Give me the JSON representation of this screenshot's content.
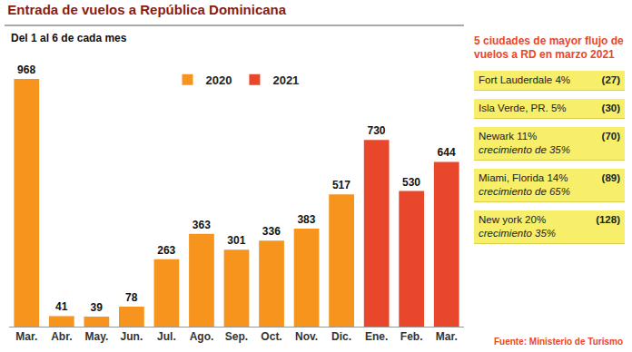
{
  "chart_data": {
    "type": "bar",
    "title": "Entrada de vuelos a República Dominicana",
    "subtitle": "Del 1 al 6 de cada mes",
    "categories": [
      "Mar.",
      "Abr.",
      "May.",
      "Jun.",
      "Jul.",
      "Ago.",
      "Sep.",
      "Oct.",
      "Nov.",
      "Dic.",
      "Ene.",
      "Feb.",
      "Mar."
    ],
    "series": [
      {
        "name": "2020",
        "color": "#f7941d",
        "values": [
          968,
          41,
          39,
          78,
          263,
          363,
          301,
          336,
          383,
          517,
          null,
          null,
          null
        ]
      },
      {
        "name": "2021",
        "color": "#e8472b",
        "values": [
          null,
          null,
          null,
          null,
          null,
          null,
          null,
          null,
          null,
          null,
          730,
          530,
          644
        ]
      }
    ],
    "ylim": [
      0,
      1050
    ],
    "grid": false,
    "data_labels": true,
    "tick_labels": "x",
    "legend": "top",
    "source": "Fuente: Ministerio de Turismo",
    "side_panel": {
      "title": "5 ciudades de mayor flujo de vuelos a RD  en marzo 2021",
      "items": [
        {
          "label": "Fort Lauderdale 4%",
          "count": "(27)"
        },
        {
          "label": "Isla Verde, PR. 5%",
          "count": "(30)"
        },
        {
          "label": "Newark 11%",
          "note": "crecimiento de 35%",
          "count": "(70)"
        },
        {
          "label": "Miami, Florida 14%",
          "note": "crecimiento de 65%",
          "count": "(89)"
        },
        {
          "label": "New york 20%",
          "note": "crecimiento 35%",
          "count": "(128)"
        }
      ]
    }
  }
}
